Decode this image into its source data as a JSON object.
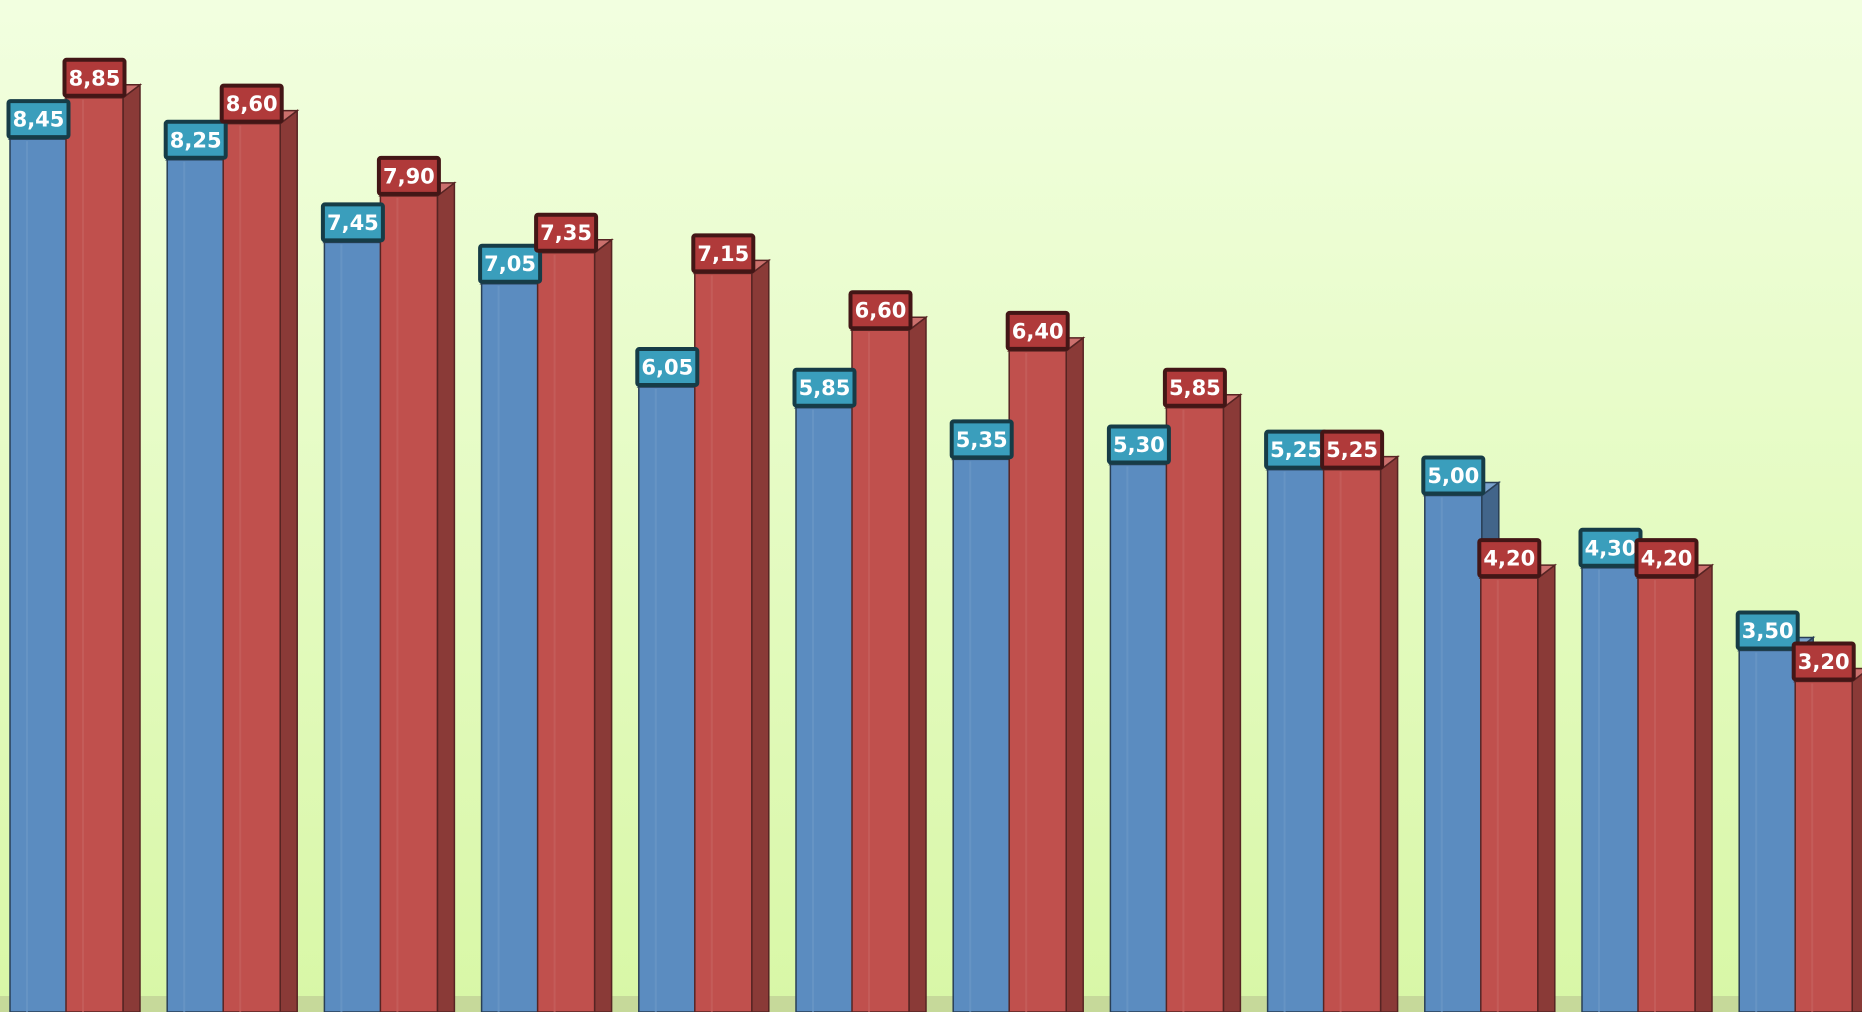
{
  "chart_data": {
    "type": "bar",
    "categories": [
      "",
      "",
      "",
      "",
      "",
      "",
      "",
      "",
      "",
      "",
      "",
      ""
    ],
    "series": [
      {
        "color": "#5b8cc0",
        "label_color": "#3a9ebc",
        "values": [
          8.45,
          8.25,
          7.45,
          7.05,
          6.05,
          5.85,
          5.35,
          5.3,
          5.25,
          5.0,
          4.3,
          3.5
        ],
        "labels": [
          "8,45",
          "8,25",
          "7,45",
          "7,05",
          "6,05",
          "5,85",
          "5,35",
          "5,30",
          "5,25",
          "5,00",
          "4,30",
          "3,50"
        ]
      },
      {
        "color": "#c0504d",
        "label_color": "#b03a3a",
        "values": [
          8.85,
          8.6,
          7.9,
          7.35,
          7.15,
          6.6,
          6.4,
          5.85,
          5.25,
          4.2,
          4.2,
          3.2
        ],
        "labels": [
          "8,85",
          "8,60",
          "7,90",
          "7,35",
          "7,15",
          "6,60",
          "6,40",
          "5,85",
          "5,25",
          "4,20",
          "4,20",
          "3,20"
        ]
      }
    ],
    "title": "",
    "xlabel": "",
    "ylabel": "",
    "ylim": [
      0,
      9.3
    ],
    "grid": false,
    "legend": "none",
    "background": [
      "#f2ffe0",
      "#d8f7a6"
    ],
    "floor_color": "#c6d99a"
  }
}
